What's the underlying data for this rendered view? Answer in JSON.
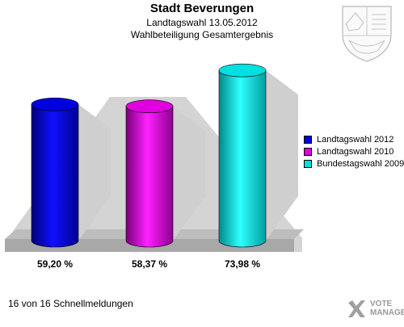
{
  "header": {
    "title": "Stadt Beverungen",
    "subtitle": "Landtagswahl 13.05.2012",
    "subtitle2": "Wahlbeteiligung Gesamtergebnis"
  },
  "chart_data": {
    "type": "bar",
    "title": "Stadt Beverungen",
    "categories": [
      "Landtagswahl 2012",
      "Landtagswahl 2010",
      "Bundestagswahl 2009"
    ],
    "values": [
      59.2,
      58.37,
      73.98
    ],
    "value_labels": [
      "59,20 %",
      "58,37 %",
      "73,98 %"
    ],
    "colors": [
      "#0000e0",
      "#e000e0",
      "#00e0e0"
    ],
    "ylim": [
      0,
      80
    ],
    "grid": false,
    "legend_position": "right"
  },
  "legend": {
    "items": [
      {
        "label": "Landtagswahl 2012",
        "color": "#0000e0"
      },
      {
        "label": "Landtagswahl 2010",
        "color": "#e000e0"
      },
      {
        "label": "Bundestagswahl 2009",
        "color": "#00e0e0"
      }
    ]
  },
  "footer": {
    "text": "16 von 16 Schnellmeldungen"
  },
  "logo": {
    "line1": "VOTE",
    "line2": "MANAGER"
  }
}
